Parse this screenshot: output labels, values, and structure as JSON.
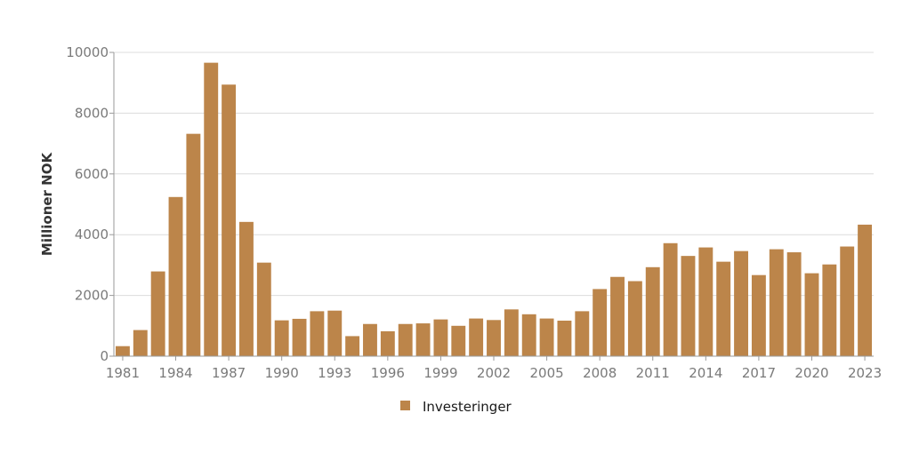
{
  "chart_data": {
    "type": "bar",
    "title": "",
    "xlabel": "",
    "ylabel": "Millioner NOK",
    "ylim": [
      0,
      10000
    ],
    "yticks": [
      0,
      2000,
      4000,
      6000,
      8000,
      10000
    ],
    "xtick_labels": [
      "1981",
      "1984",
      "1987",
      "1990",
      "1993",
      "1996",
      "1999",
      "2002",
      "2005",
      "2008",
      "2011",
      "2014",
      "2017",
      "2020",
      "2023"
    ],
    "grid": true,
    "legend_position": "bottom-center",
    "bar_color": "#bc854a",
    "categories": [
      "1981",
      "1982",
      "1983",
      "1984",
      "1985",
      "1986",
      "1987",
      "1988",
      "1989",
      "1990",
      "1991",
      "1992",
      "1993",
      "1994",
      "1995",
      "1996",
      "1997",
      "1998",
      "1999",
      "2000",
      "2001",
      "2002",
      "2003",
      "2004",
      "2005",
      "2006",
      "2007",
      "2008",
      "2009",
      "2010",
      "2011",
      "2012",
      "2013",
      "2014",
      "2015",
      "2016",
      "2017",
      "2018",
      "2019",
      "2020",
      "2021",
      "2022",
      "2023"
    ],
    "series": [
      {
        "name": "Investeringer",
        "values": [
          330,
          860,
          2790,
          5240,
          7320,
          9660,
          8940,
          4420,
          3080,
          1180,
          1230,
          1480,
          1500,
          660,
          1060,
          820,
          1060,
          1080,
          1210,
          1000,
          1240,
          1190,
          1540,
          1380,
          1240,
          1170,
          1480,
          2210,
          2610,
          2470,
          2930,
          3720,
          3300,
          3580,
          3110,
          3460,
          2670,
          3520,
          3420,
          2730,
          3020,
          3610,
          4330
        ]
      }
    ]
  }
}
